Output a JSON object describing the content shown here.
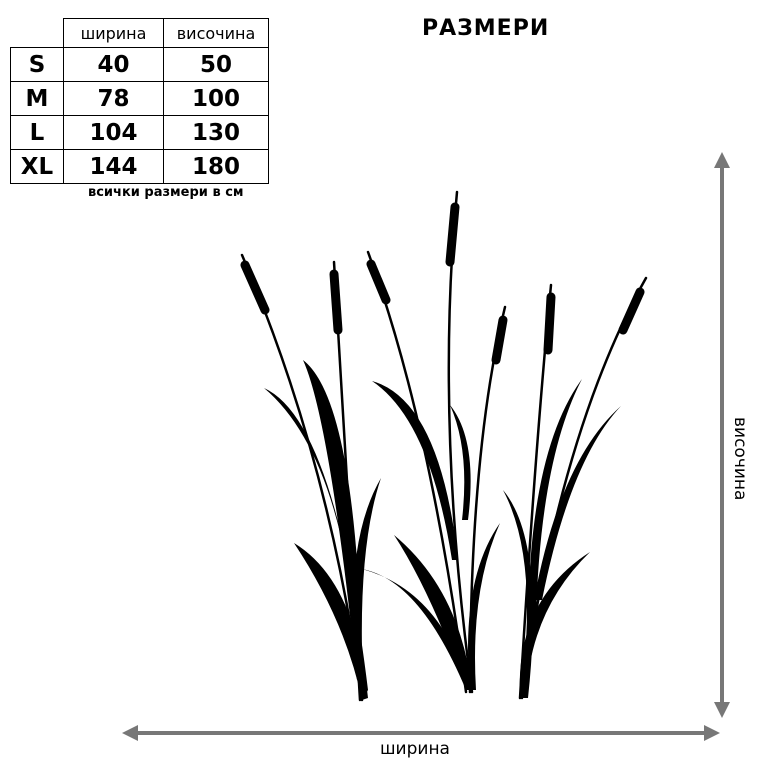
{
  "title": "РАЗМЕРИ",
  "table": {
    "header": [
      "ширина",
      "височина"
    ],
    "rows": [
      [
        "S",
        "40",
        "50"
      ],
      [
        "M",
        "78",
        "100"
      ],
      [
        "L",
        "104",
        "130"
      ],
      [
        "XL",
        "144",
        "180"
      ]
    ],
    "note": "всички размери в см"
  },
  "dimensions": {
    "width_label": "ширина",
    "height_label": "височина"
  }
}
